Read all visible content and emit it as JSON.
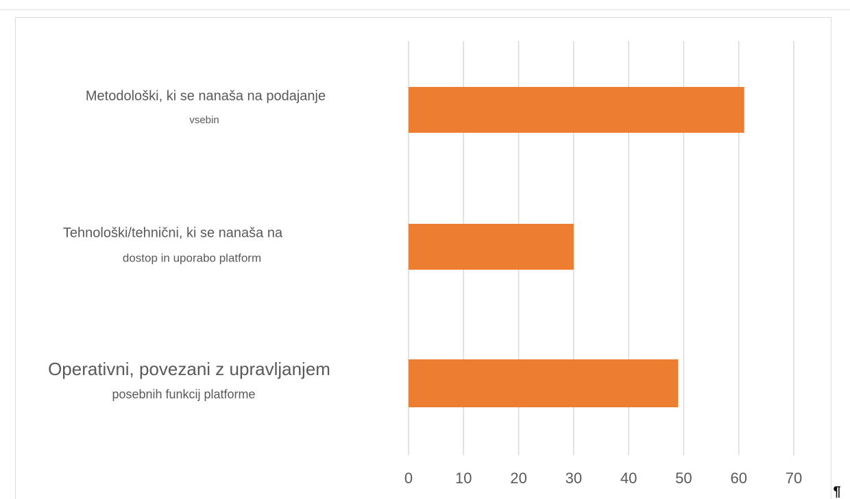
{
  "chart_data": {
    "type": "bar",
    "orientation": "horizontal",
    "categories": [
      [
        "Metodološki, ki se nanaša na podajanje",
        "vsebin"
      ],
      [
        "Tehnološki/tehnični, ki se nanaša na",
        "dostop in uporabo platform"
      ],
      [
        "Operativni, povezani z upravljanjem",
        "posebnih funkcij platforme"
      ]
    ],
    "values": [
      61,
      30,
      49
    ],
    "color": "#ed7d31",
    "xlim": [
      0,
      70
    ],
    "xticks": [
      0,
      10,
      20,
      30,
      40,
      50,
      60,
      70
    ],
    "grid": true
  },
  "paragraph_mark": "¶"
}
